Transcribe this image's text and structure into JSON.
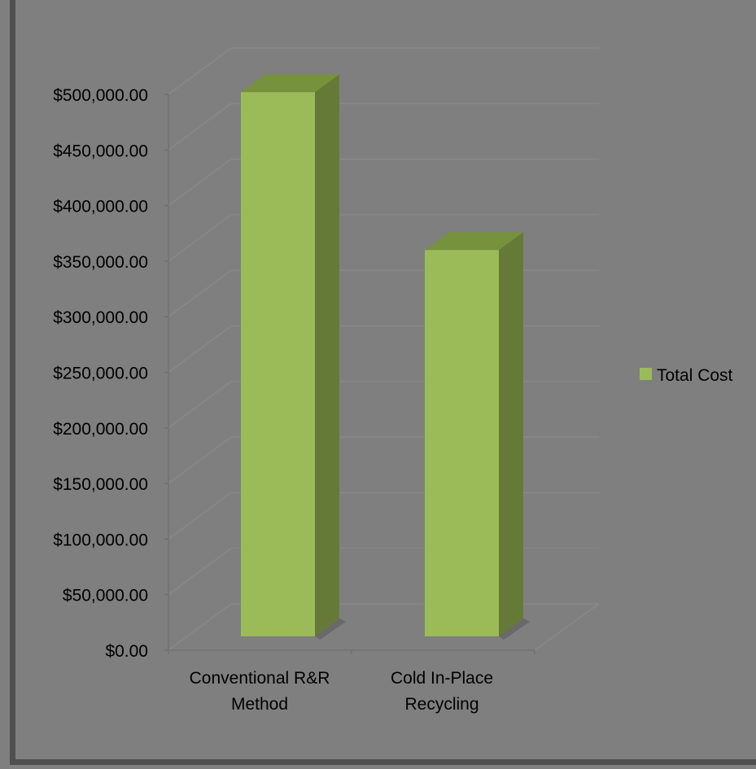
{
  "chart_data": {
    "type": "bar",
    "categories": [
      "Conventional R&R Method",
      "Cold In-Place Recycling"
    ],
    "category_label_lines": [
      [
        "Conventional R&R",
        "Method"
      ],
      [
        "Cold In-Place",
        "Recycling"
      ]
    ],
    "series": [
      {
        "name": "Total Cost",
        "values": [
          502000,
          360000
        ]
      }
    ],
    "ylim": [
      0,
      500000
    ],
    "ytick_step": 50000,
    "ytick_labels": [
      "$0.00",
      "$50,000.00",
      "$100,000.00",
      "$150,000.00",
      "$200,000.00",
      "$250,000.00",
      "$300,000.00",
      "$350,000.00",
      "$400,000.00",
      "$450,000.00",
      "$500,000.00"
    ],
    "title": "",
    "xlabel": "",
    "ylabel": "",
    "legend_position": "right",
    "grid": true,
    "style": "3d-column",
    "colors": {
      "background": "#7f7f7f",
      "bar_front": "#9bbb59",
      "bar_top": "#76923c",
      "bar_side": "#667a38",
      "gridline": "#8c8c8c",
      "text": "#000000"
    }
  }
}
